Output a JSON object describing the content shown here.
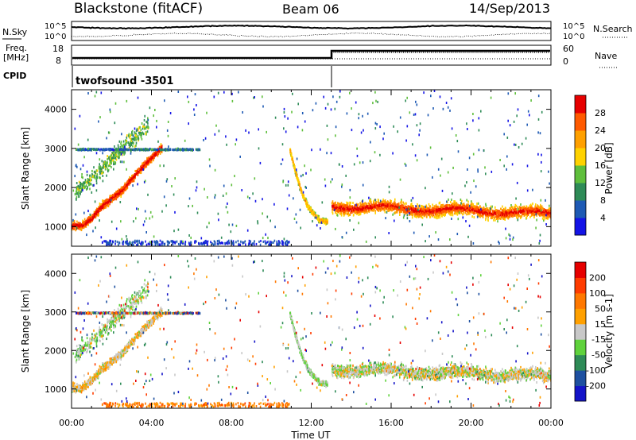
{
  "header": {
    "station": "Blackstone (fitACF)",
    "beam": "Beam 06",
    "date": "14/Sep/2013"
  },
  "noise_panel": {
    "left_label": "N.Sky",
    "right_label": "N.Search",
    "ticks_left": [
      "10^5",
      "10^0"
    ],
    "ticks_right": [
      "10^5",
      "10^0"
    ]
  },
  "freq_panel": {
    "left_label_line1": "Freq.",
    "left_label_line2": "[MHz]",
    "right_label": "Nave",
    "ticks_left": [
      "18",
      "8"
    ],
    "ticks_right": [
      "60",
      "0"
    ]
  },
  "cpid_panel": {
    "label": "CPID",
    "value": "twofsound -3501"
  },
  "chart_data": [
    {
      "type": "heatmap",
      "title": "",
      "xlabel": "Time UT",
      "ylabel": "Slant Range [km]",
      "x_ticks": [
        "00:00",
        "04:00",
        "08:00",
        "12:00",
        "16:00",
        "20:00",
        "00:00"
      ],
      "y_ticks": [
        1000,
        2000,
        3000,
        4000
      ],
      "ylim": [
        500,
        4500
      ],
      "colorbar": {
        "label": "Power [dB]",
        "ticks": [
          4,
          8,
          12,
          16,
          20,
          24,
          28
        ],
        "colors": [
          "#1414e6",
          "#1e5ab4",
          "#2e8b57",
          "#5fbf3c",
          "#ffd200",
          "#ffa000",
          "#ff5a00",
          "#e60000"
        ]
      },
      "features": [
        {
          "name": "main echo band",
          "t_hours": [
            0.0,
            0.5,
            1.0,
            1.5,
            2.0,
            2.5,
            3.0,
            3.5,
            4.0,
            4.5
          ],
          "range_km": [
            1050,
            1050,
            1250,
            1550,
            1750,
            1950,
            2250,
            2550,
            2800,
            3050
          ]
        },
        {
          "name": "sunset band",
          "t_hours": [
            10.9,
            11.2,
            11.5,
            11.8,
            12.1,
            12.4,
            12.8
          ],
          "range_km": [
            3000,
            2400,
            1900,
            1550,
            1350,
            1200,
            1150
          ]
        },
        {
          "name": "night band",
          "t_hours": [
            13.0,
            16.0,
            19.0,
            22.0,
            24.0
          ],
          "range_km": [
            1550,
            1500,
            1450,
            1400,
            1350
          ]
        }
      ]
    },
    {
      "type": "heatmap",
      "title": "",
      "xlabel": "Time UT",
      "ylabel": "Slant Range [km]",
      "x_ticks": [
        "00:00",
        "04:00",
        "08:00",
        "12:00",
        "16:00",
        "20:00",
        "00:00"
      ],
      "y_ticks": [
        1000,
        2000,
        3000,
        4000
      ],
      "ylim": [
        500,
        4500
      ],
      "colorbar": {
        "label": "Velocity [m s-1]",
        "ticks": [
          200,
          100,
          50,
          15,
          -15,
          -50,
          -100,
          -200
        ],
        "colors": [
          "#1414c8",
          "#1e50a0",
          "#2e8b57",
          "#5fd23c",
          "#c8c8c8",
          "#ffa000",
          "#ff7800",
          "#ff3c00",
          "#e60000"
        ]
      }
    }
  ]
}
